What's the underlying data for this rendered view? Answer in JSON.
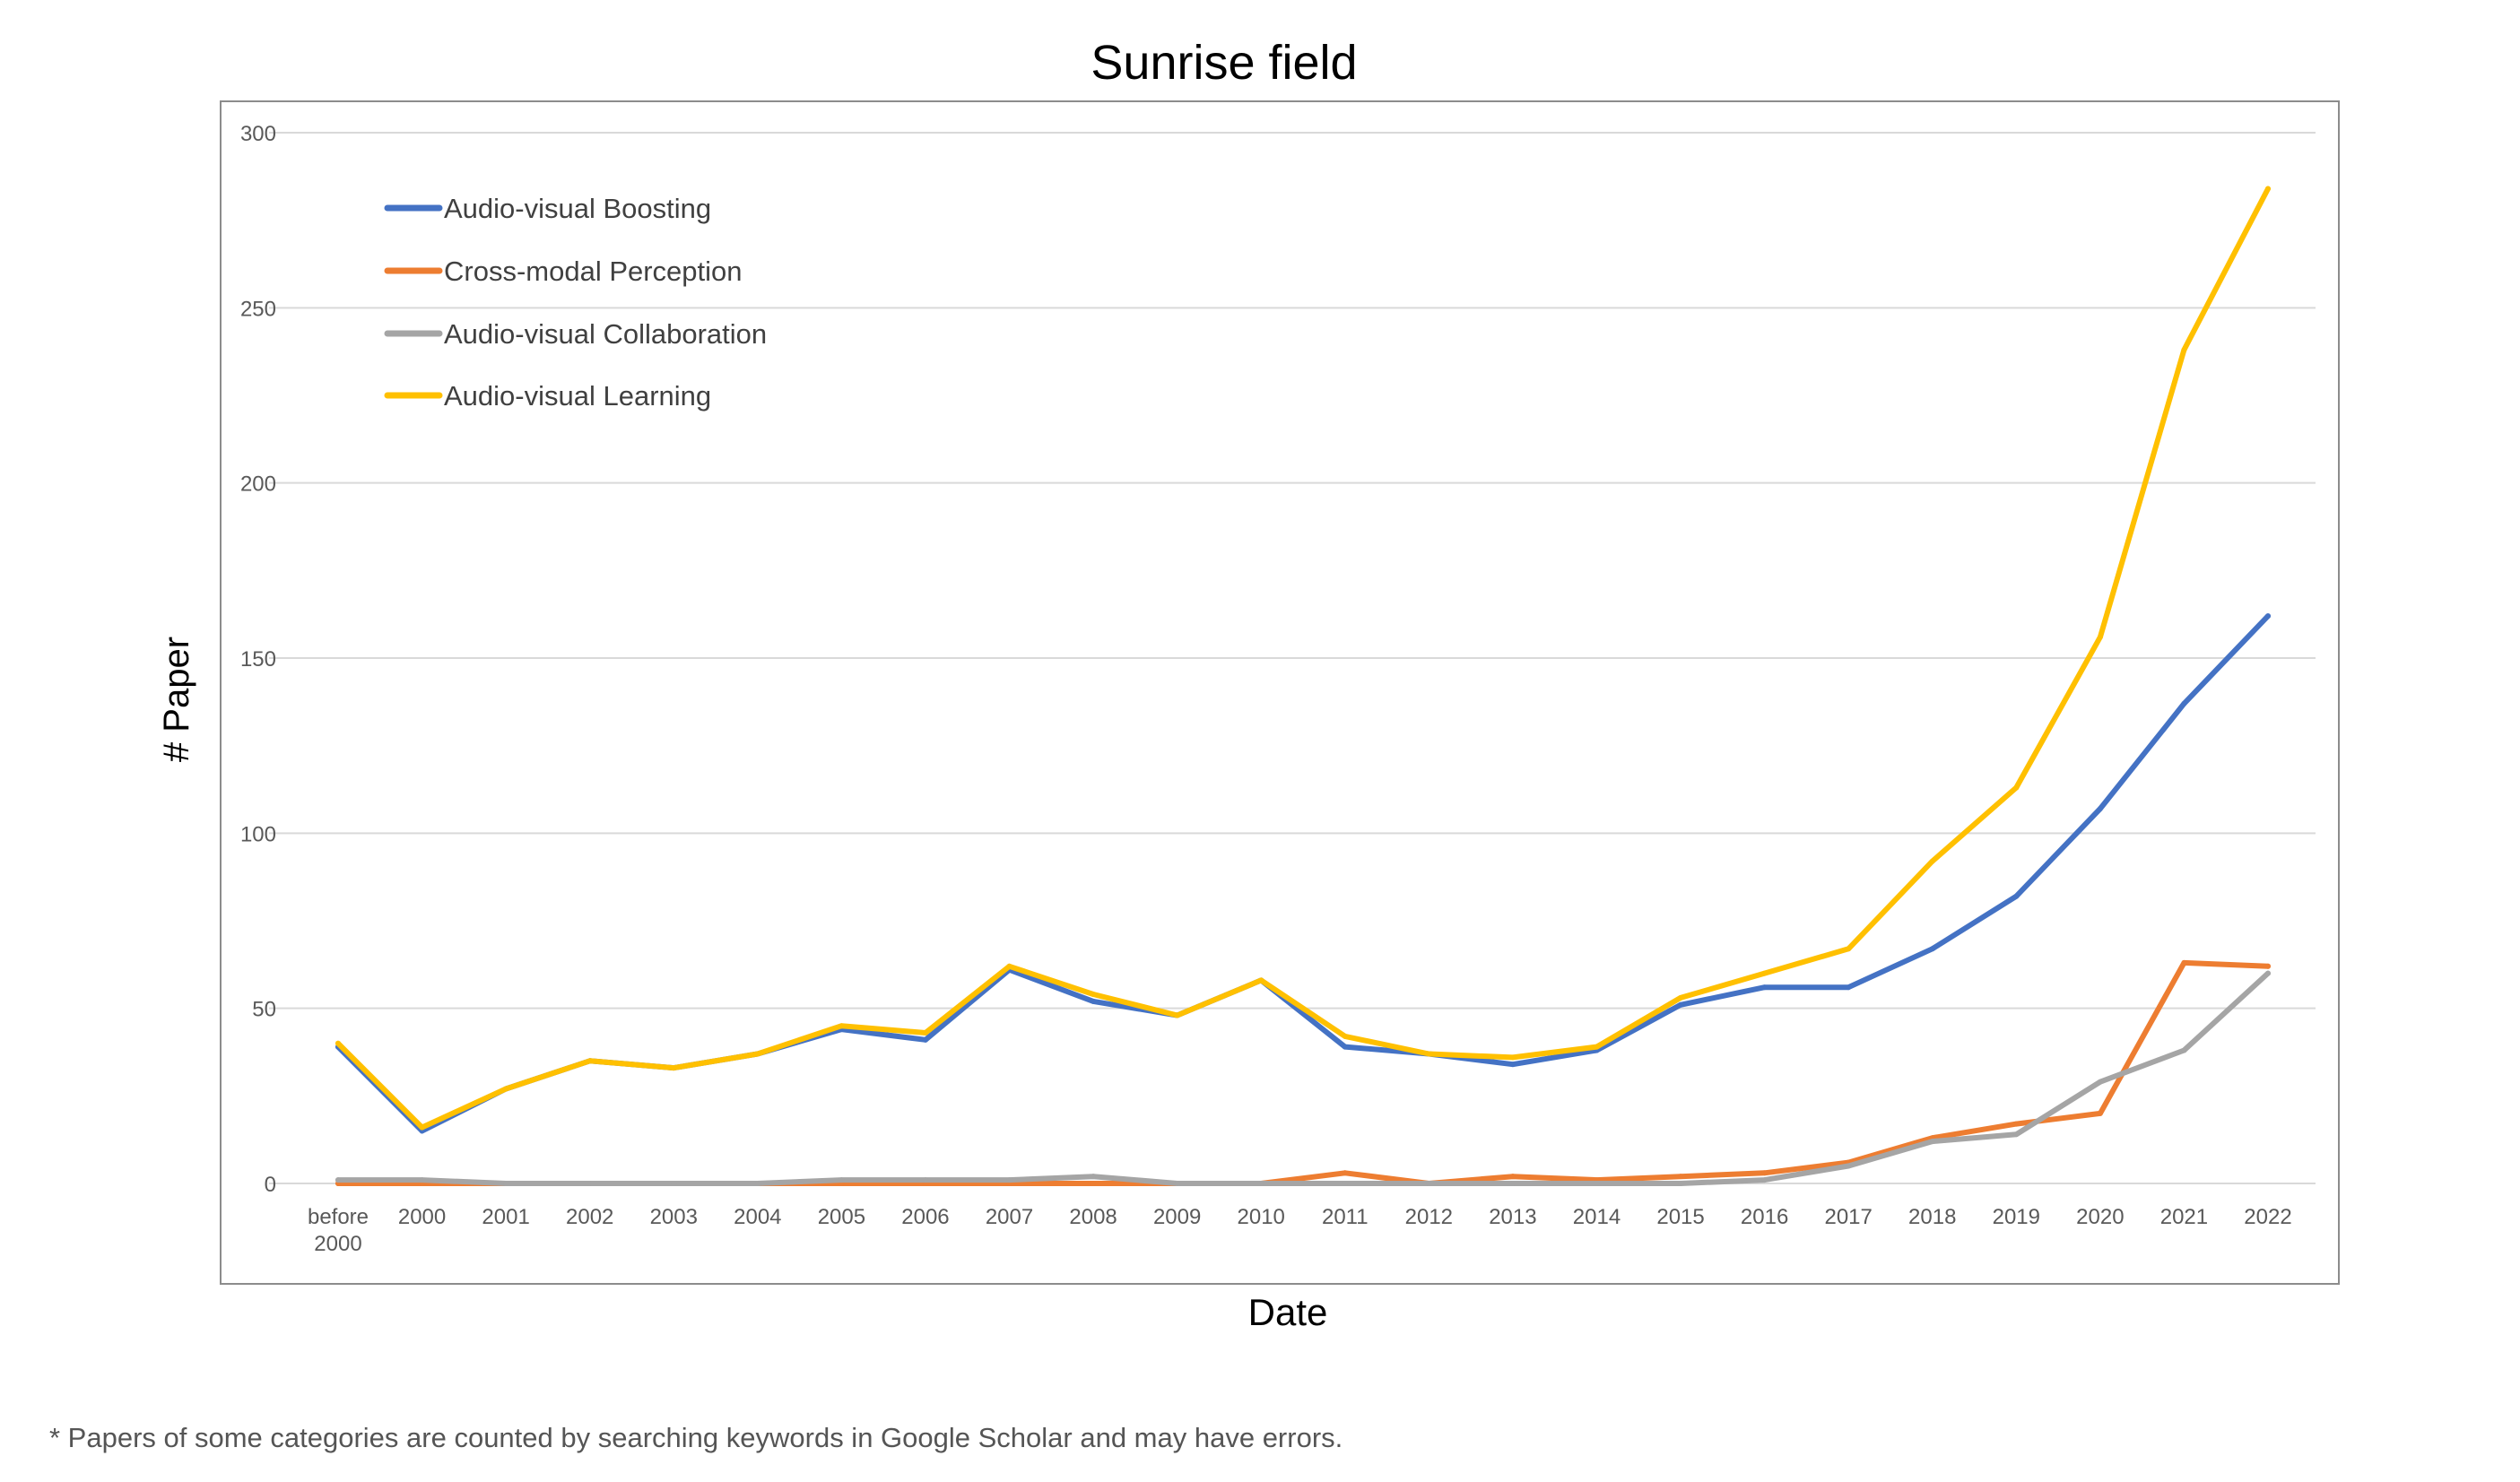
{
  "chart_data": {
    "type": "line",
    "title": "Sunrise field",
    "xlabel": "Date",
    "ylabel": "# Paper",
    "ylim": [
      0,
      300
    ],
    "yticks": [
      0,
      50,
      100,
      150,
      200,
      250,
      300
    ],
    "grid": true,
    "legend_position": "top-left",
    "categories": [
      "before 2000",
      "2000",
      "2001",
      "2002",
      "2003",
      "2004",
      "2005",
      "2006",
      "2007",
      "2008",
      "2009",
      "2010",
      "2011",
      "2012",
      "2013",
      "2014",
      "2015",
      "2016",
      "2017",
      "2018",
      "2019",
      "2020",
      "2021",
      "2022"
    ],
    "series": [
      {
        "name": "Audio-visual Boosting",
        "color": "#4472C4",
        "values": [
          39,
          15,
          27,
          35,
          33,
          37,
          44,
          41,
          61,
          52,
          48,
          58,
          39,
          37,
          34,
          38,
          51,
          56,
          56,
          67,
          82,
          107,
          137,
          162
        ]
      },
      {
        "name": "Cross-modal Perception",
        "color": "#ED7D31",
        "values": [
          0,
          0,
          0,
          0,
          0,
          0,
          0,
          0,
          0,
          0,
          0,
          0,
          3,
          0,
          2,
          1,
          2,
          3,
          6,
          13,
          17,
          20,
          63,
          62
        ]
      },
      {
        "name": "Audio-visual Collaboration",
        "color": "#A5A5A5",
        "values": [
          1,
          1,
          0,
          0,
          0,
          0,
          1,
          1,
          1,
          2,
          0,
          0,
          0,
          0,
          0,
          0,
          0,
          1,
          5,
          12,
          14,
          29,
          38,
          60
        ]
      },
      {
        "name": "Audio-visual Learning",
        "color": "#FFC000",
        "values": [
          40,
          16,
          27,
          35,
          33,
          37,
          45,
          43,
          62,
          54,
          48,
          58,
          42,
          37,
          36,
          39,
          53,
          60,
          67,
          92,
          113,
          156,
          238,
          284
        ]
      }
    ]
  },
  "footnote": "* Papers of some categories are counted by searching keywords in Google Scholar and may have errors."
}
